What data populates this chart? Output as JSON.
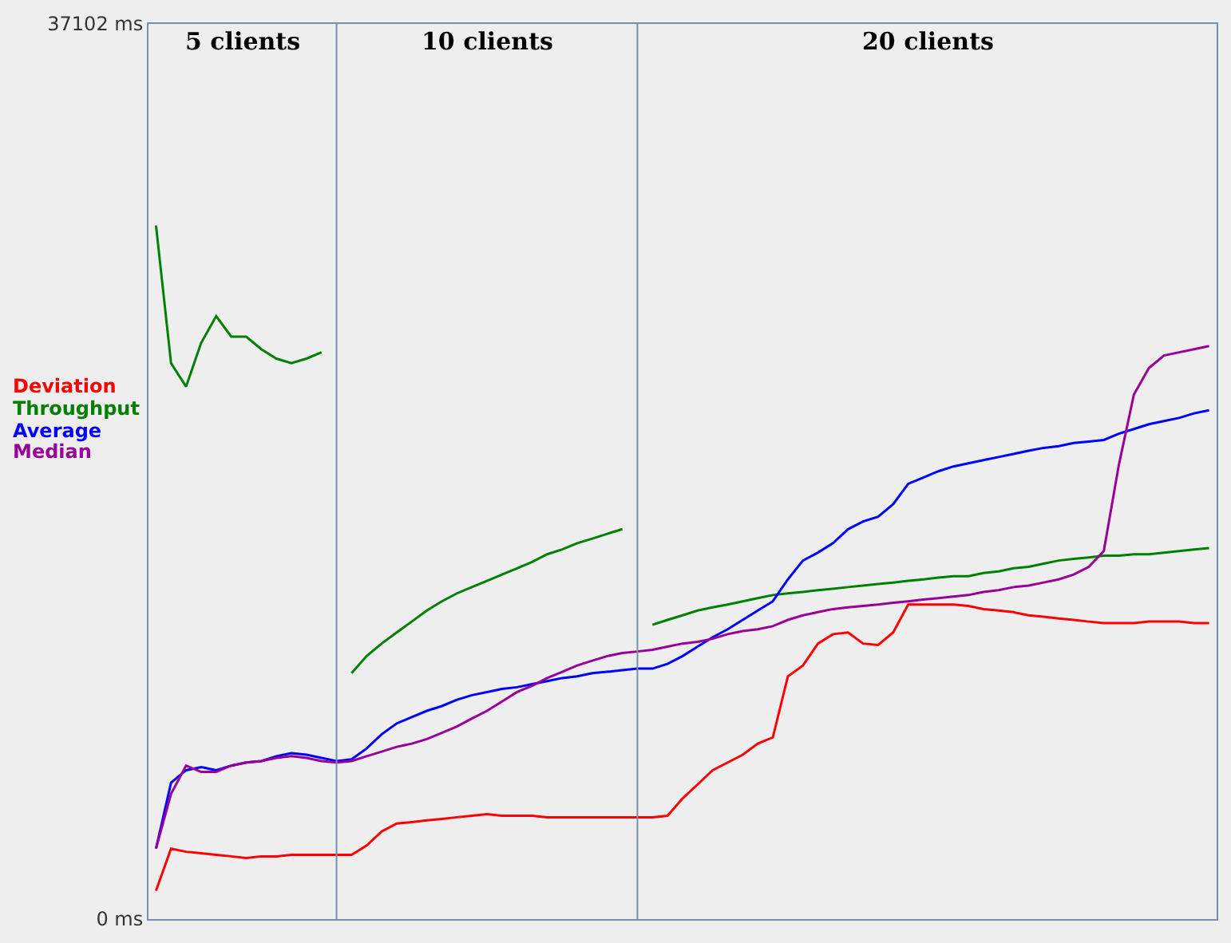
{
  "chart_data": {
    "type": "line",
    "categories": [
      null,
      null,
      null,
      null,
      null,
      null,
      null,
      null,
      null,
      null,
      null,
      null,
      null,
      null,
      null,
      null,
      null,
      null,
      null,
      null,
      null,
      null,
      null,
      null,
      null,
      null,
      null,
      null,
      null,
      null,
      null,
      null,
      null,
      null,
      null,
      null,
      null,
      null,
      null,
      null,
      null,
      null,
      null,
      null,
      null,
      null,
      null,
      null,
      null,
      null,
      null,
      null,
      null,
      null,
      null,
      null,
      null,
      null,
      null,
      null,
      null,
      null,
      null,
      null,
      null,
      null,
      null,
      null,
      null,
      null,
      null
    ],
    "ylim": [
      0,
      37102
    ],
    "yticks": [
      {
        "value": 0,
        "label": "0 ms"
      },
      {
        "value": 37102,
        "label": "37102 ms"
      }
    ],
    "tick_labels": "y",
    "grid": "x",
    "annotations": [
      "5 clients",
      "10 clients",
      "20 clients"
    ],
    "series": [
      {
        "name": "Deviation",
        "color": "#ff0000",
        "values": [
          1170,
          2920,
          2790,
          2730,
          2660,
          2600,
          2530,
          2600,
          2600,
          2660,
          2660,
          2660,
          2660,
          2660,
          3050,
          3630,
          3960,
          4020,
          4090,
          4150,
          4220,
          4280,
          4350,
          4280,
          4280,
          4280,
          4220,
          4220,
          4220,
          4220,
          4220,
          4220,
          4220,
          4220,
          4280,
          5000,
          5580,
          6170,
          6490,
          6810,
          7270,
          7530,
          10060,
          10510,
          11420,
          11810,
          11880,
          11420,
          11360,
          11880,
          13040,
          13040,
          13040,
          13040,
          12980,
          12850,
          12790,
          12720,
          12590,
          12530,
          12460,
          12400,
          12330,
          12270,
          12270,
          12270,
          12330,
          12330,
          12330,
          12270,
          12270
        ]
      },
      {
        "name": "Throughput",
        "color": "#008000",
        "values": [
          28750,
          23040,
          22070,
          23880,
          24990,
          24140,
          24140,
          23620,
          23230,
          23040,
          23230,
          23490,
          null,
          10190,
          10900,
          11420,
          11880,
          12330,
          12790,
          13170,
          13500,
          13760,
          14020,
          14280,
          14540,
          14800,
          15120,
          15320,
          15580,
          15770,
          15970,
          16160,
          null,
          12200,
          12400,
          12590,
          12790,
          12920,
          13040,
          13170,
          13300,
          13430,
          13500,
          13560,
          13630,
          13690,
          13760,
          13820,
          13890,
          13950,
          14020,
          14080,
          14150,
          14210,
          14210,
          14340,
          14410,
          14540,
          14600,
          14730,
          14860,
          14930,
          14990,
          15060,
          15060,
          15120,
          15120,
          15190,
          15250,
          15320,
          15380
        ]
      },
      {
        "name": "Average",
        "color": "#0000ff",
        "values": [
          2920,
          5650,
          6170,
          6300,
          6170,
          6360,
          6490,
          6550,
          6750,
          6880,
          6810,
          6680,
          6550,
          6620,
          7070,
          7660,
          8110,
          8370,
          8630,
          8830,
          9090,
          9280,
          9410,
          9540,
          9610,
          9740,
          9860,
          9990,
          10060,
          10190,
          10250,
          10320,
          10380,
          10380,
          10580,
          10900,
          11290,
          11680,
          12010,
          12400,
          12790,
          13170,
          14080,
          14860,
          15190,
          15580,
          16160,
          16480,
          16680,
          17200,
          18040,
          18300,
          18560,
          18760,
          18890,
          19020,
          19150,
          19280,
          19410,
          19530,
          19600,
          19730,
          19790,
          19860,
          20120,
          20310,
          20510,
          20640,
          20770,
          20960,
          21090
        ]
      },
      {
        "name": "Median",
        "color": "#990099",
        "values": [
          2920,
          5190,
          6360,
          6100,
          6100,
          6360,
          6490,
          6550,
          6680,
          6750,
          6680,
          6550,
          6490,
          6550,
          6750,
          6940,
          7140,
          7270,
          7460,
          7720,
          7980,
          8310,
          8630,
          9020,
          9410,
          9670,
          9990,
          10250,
          10510,
          10710,
          10900,
          11030,
          11090,
          11160,
          11290,
          11420,
          11490,
          11620,
          11810,
          11940,
          12010,
          12140,
          12400,
          12590,
          12720,
          12850,
          12920,
          12980,
          13040,
          13110,
          13170,
          13240,
          13300,
          13370,
          13430,
          13560,
          13630,
          13760,
          13820,
          13950,
          14080,
          14280,
          14600,
          15250,
          18820,
          21740,
          22840,
          23360,
          23490,
          23620,
          23750
        ]
      }
    ]
  }
}
